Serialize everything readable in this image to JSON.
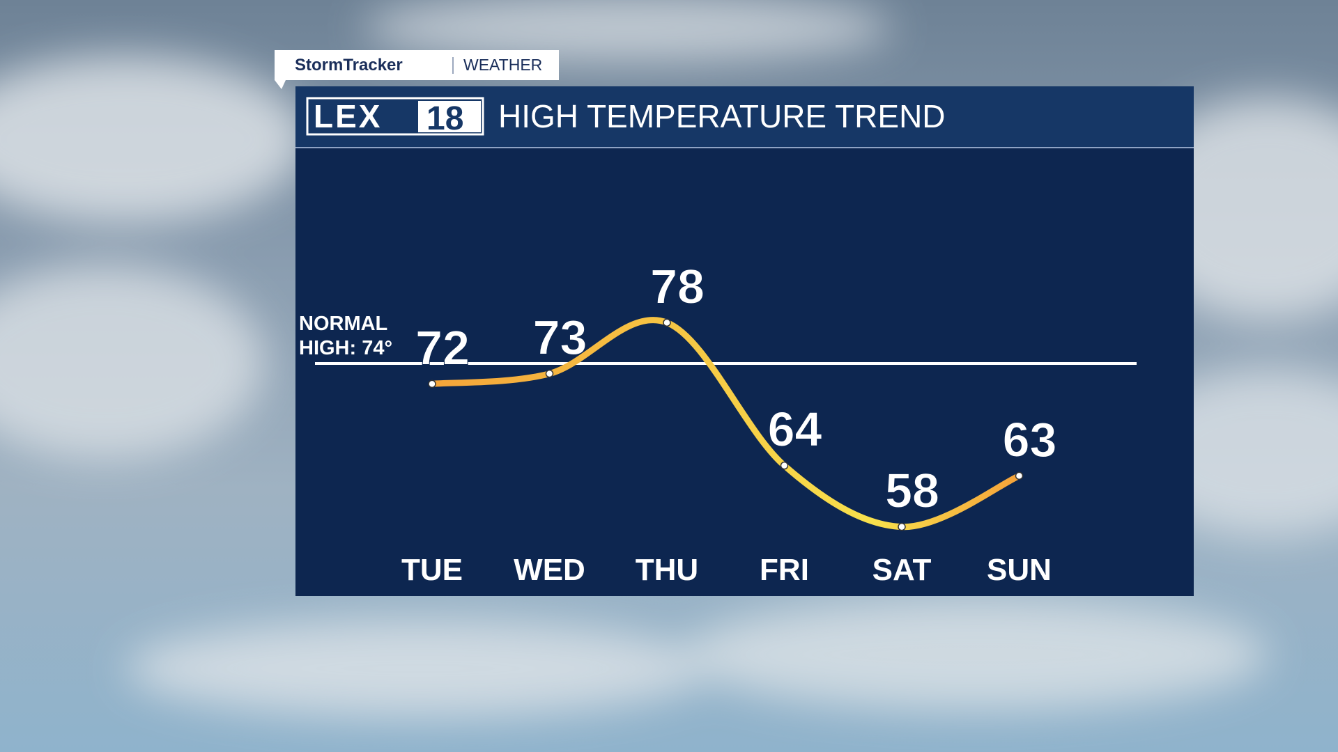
{
  "brand": {
    "show": "StormTracker",
    "section": "WEATHER",
    "logo_left": "LEX",
    "logo_right": "18"
  },
  "chart_data": {
    "type": "line",
    "title": "HIGH TEMPERATURE TREND",
    "categories": [
      "TUE",
      "WED",
      "THU",
      "FRI",
      "SAT",
      "SUN"
    ],
    "values": [
      72,
      73,
      78,
      64,
      58,
      63
    ],
    "ylim": [
      56,
      95
    ],
    "reference_line": {
      "value": 74,
      "label": "NORMAL HIGH: 74°"
    },
    "colors": [
      "#f4a43a",
      "#f8e14c",
      "#f5a23a"
    ]
  }
}
